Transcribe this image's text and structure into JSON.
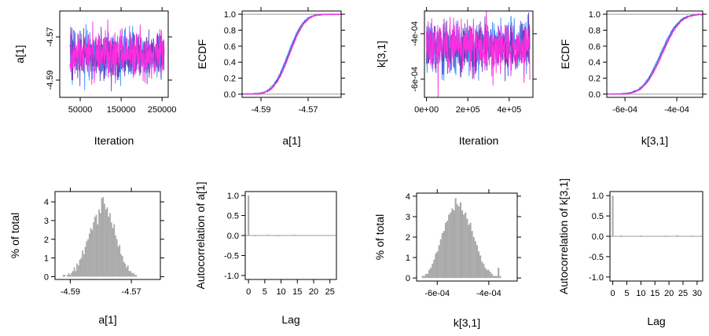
{
  "colors": {
    "chain1": "#3b8fff",
    "chain2": "#6a3fb8",
    "chain3": "#ff2de0",
    "hist": "#a8a8a8",
    "grid_line": "#9a9a9a",
    "axis": "#000000"
  },
  "chart_data": [
    {
      "id": "trace-a1",
      "type": "line",
      "subtype": "mcmc-trace",
      "xlabel": "Iteration",
      "ylabel": "a[1]",
      "x_ticks": [
        {
          "value": 50000,
          "label": "50000"
        },
        {
          "value": 150000,
          "label": "150000"
        },
        {
          "value": 250000,
          "label": "250000"
        }
      ],
      "y_ticks": [
        {
          "value": -4.57,
          "label": "-4.57"
        },
        {
          "value": -4.59,
          "label": "-4.59"
        }
      ],
      "xlim": [
        0,
        265000
      ],
      "ylim": [
        -4.598,
        -4.558
      ],
      "x_start": 25000,
      "x_end": 255000,
      "center": -4.5785,
      "spread": 0.0055,
      "series": [
        {
          "color_key": "chain1"
        },
        {
          "color_key": "chain2"
        },
        {
          "color_key": "chain3"
        }
      ]
    },
    {
      "id": "ecdf-a1",
      "type": "line",
      "subtype": "ecdf",
      "xlabel": "a[1]",
      "ylabel": "ECDF",
      "x_ticks": [
        {
          "value": -4.59,
          "label": "-4.59"
        },
        {
          "value": -4.57,
          "label": "-4.57"
        }
      ],
      "y_ticks": [
        {
          "value": 0.0,
          "label": "0.0"
        },
        {
          "value": 0.2,
          "label": "0.2"
        },
        {
          "value": 0.4,
          "label": "0.4"
        },
        {
          "value": 0.6,
          "label": "0.6"
        },
        {
          "value": 0.8,
          "label": "0.8"
        },
        {
          "value": 1.0,
          "label": "1.0"
        }
      ],
      "xlim": [
        -4.598,
        -4.556
      ],
      "ylim": [
        -0.04,
        1.04
      ],
      "center": -4.5782,
      "spread": 0.0052,
      "series": [
        {
          "color_key": "chain1",
          "shift": -0.0004
        },
        {
          "color_key": "chain2",
          "shift": 0.0
        },
        {
          "color_key": "chain3",
          "shift": 0.0004
        }
      ]
    },
    {
      "id": "trace-k31",
      "type": "line",
      "subtype": "mcmc-trace",
      "xlabel": "Iteration",
      "ylabel": "k[3,1]",
      "x_ticks": [
        {
          "value": 0,
          "label": "0e+00"
        },
        {
          "value": 200000,
          "label": "2e+05"
        },
        {
          "value": 400000,
          "label": "4e+05"
        }
      ],
      "y_ticks": [
        {
          "value": -0.0004,
          "label": "-4e-04"
        },
        {
          "value": -0.0006,
          "label": "-6e-04"
        }
      ],
      "xlim": [
        -10000,
        515000
      ],
      "ylim": [
        -0.00068,
        -0.0003
      ],
      "x_start": 0,
      "x_end": 500000,
      "center": -0.00046,
      "spread": 5.5e-05,
      "series": [
        {
          "color_key": "chain1"
        },
        {
          "color_key": "chain2"
        },
        {
          "color_key": "chain3"
        }
      ]
    },
    {
      "id": "ecdf-k31",
      "type": "line",
      "subtype": "ecdf",
      "xlabel": "k[3,1]",
      "ylabel": "ECDF",
      "x_ticks": [
        {
          "value": -0.0006,
          "label": "-6e-04"
        },
        {
          "value": -0.0004,
          "label": "-4e-04"
        }
      ],
      "y_ticks": [
        {
          "value": 0.0,
          "label": "0.0"
        },
        {
          "value": 0.2,
          "label": "0.2"
        },
        {
          "value": 0.4,
          "label": "0.4"
        },
        {
          "value": 0.6,
          "label": "0.6"
        },
        {
          "value": 0.8,
          "label": "0.8"
        },
        {
          "value": 1.0,
          "label": "1.0"
        }
      ],
      "xlim": [
        -0.00067,
        -0.0003
      ],
      "ylim": [
        -0.04,
        1.04
      ],
      "center": -0.00046,
      "spread": 5.5e-05,
      "series": [
        {
          "color_key": "chain1",
          "shift": -4e-06
        },
        {
          "color_key": "chain2",
          "shift": 0.0
        },
        {
          "color_key": "chain3",
          "shift": 4e-06
        }
      ]
    },
    {
      "id": "hist-a1",
      "type": "bar",
      "subtype": "histogram",
      "xlabel": "a[1]",
      "ylabel": "% of total",
      "x_ticks": [
        {
          "value": -4.59,
          "label": "-4.59"
        },
        {
          "value": -4.57,
          "label": "-4.57"
        }
      ],
      "y_ticks": [
        {
          "value": 0,
          "label": "0"
        },
        {
          "value": 1,
          "label": "1"
        },
        {
          "value": 2,
          "label": "2"
        },
        {
          "value": 3,
          "label": "3"
        },
        {
          "value": 4,
          "label": "4"
        }
      ],
      "xlim": [
        -4.595,
        -4.5605
      ],
      "ylim": [
        -0.15,
        4.55
      ],
      "bin_start": -4.5925,
      "bin_width": 0.00045,
      "values": [
        0.1,
        0.1,
        0,
        0.1,
        0.2,
        0.1,
        0.2,
        0.3,
        0.5,
        0.3,
        0.7,
        0.6,
        0.9,
        1.0,
        1.4,
        1.2,
        1.6,
        1.9,
        2.0,
        2.3,
        2.6,
        2.5,
        2.9,
        3.2,
        3.3,
        2.8,
        3.6,
        3.4,
        4.2,
        4.25,
        3.9,
        3.6,
        3.7,
        3.2,
        3.4,
        2.9,
        2.6,
        2.8,
        2.2,
        2.0,
        1.6,
        1.7,
        1.2,
        1.1,
        0.8,
        0.7,
        0.5,
        0.6,
        0.3,
        0.3,
        0.2,
        0.2,
        0.1,
        0.1
      ]
    },
    {
      "id": "acf-a1",
      "type": "bar",
      "subtype": "autocorrelation",
      "xlabel": "Lag",
      "ylabel": "Autocorrelation of a[1]",
      "x_ticks": [
        {
          "value": 0,
          "label": "0"
        },
        {
          "value": 5,
          "label": "5"
        },
        {
          "value": 10,
          "label": "10"
        },
        {
          "value": 15,
          "label": "15"
        },
        {
          "value": 20,
          "label": "20"
        },
        {
          "value": 25,
          "label": "25"
        }
      ],
      "y_ticks": [
        {
          "value": 1.0,
          "label": "1.0"
        },
        {
          "value": 0.5,
          "label": "0.5"
        },
        {
          "value": 0.0,
          "label": "0.0"
        },
        {
          "value": -0.5,
          "label": "-0.5"
        },
        {
          "value": -1.0,
          "label": "-1.0"
        }
      ],
      "xlim": [
        -1,
        27
      ],
      "ylim": [
        -1.1,
        1.1
      ],
      "x": [
        0,
        1,
        2,
        3,
        4,
        5,
        6,
        7,
        8,
        9,
        10,
        11,
        12,
        13,
        14,
        15,
        16,
        17,
        18,
        19,
        20,
        21,
        22,
        23,
        24,
        25,
        26
      ],
      "values": [
        1.0,
        0.01,
        -0.02,
        0.01,
        0.0,
        -0.01,
        0.02,
        -0.01,
        0.0,
        -0.02,
        0.01,
        0.0,
        0.01,
        -0.01,
        0.02,
        0.0,
        -0.01,
        0.01,
        0.0,
        -0.01,
        0.0,
        0.01,
        -0.01,
        0.0,
        0.01,
        0.0,
        -0.01
      ]
    },
    {
      "id": "hist-k31",
      "type": "bar",
      "subtype": "histogram",
      "xlabel": "k[3,1]",
      "ylabel": "% of total",
      "x_ticks": [
        {
          "value": -0.0006,
          "label": "-6e-04"
        },
        {
          "value": -0.0004,
          "label": "-4e-04"
        }
      ],
      "y_ticks": [
        {
          "value": 0,
          "label": "0"
        },
        {
          "value": 1,
          "label": "1"
        },
        {
          "value": 2,
          "label": "2"
        },
        {
          "value": 3,
          "label": "3"
        },
        {
          "value": 4,
          "label": "4"
        }
      ],
      "xlim": [
        -0.00068,
        -0.00029
      ],
      "ylim": [
        -0.15,
        4.15
      ],
      "bin_start": -0.00066,
      "bin_width": 6.4e-06,
      "values": [
        0.1,
        0.1,
        0.2,
        0.2,
        0.4,
        0.5,
        0.7,
        0.9,
        1.2,
        1.3,
        1.6,
        1.9,
        2.2,
        2.3,
        2.7,
        2.8,
        3.1,
        3.2,
        3.4,
        3.3,
        3.9,
        3.6,
        3.5,
        3.7,
        3.3,
        3.1,
        3.2,
        2.9,
        2.6,
        2.7,
        2.3,
        2.0,
        1.8,
        1.6,
        1.3,
        1.1,
        0.8,
        0.7,
        0.5,
        0.4,
        0.4,
        0.3,
        0.2,
        0.1,
        0.1,
        0.1,
        0.5,
        0.1
      ]
    },
    {
      "id": "acf-k31",
      "type": "bar",
      "subtype": "autocorrelation",
      "xlabel": "Lag",
      "ylabel": "Autocorrelation of k[3,1]",
      "x_ticks": [
        {
          "value": 0,
          "label": "0"
        },
        {
          "value": 5,
          "label": "5"
        },
        {
          "value": 10,
          "label": "10"
        },
        {
          "value": 15,
          "label": "15"
        },
        {
          "value": 20,
          "label": "20"
        },
        {
          "value": 25,
          "label": "25"
        },
        {
          "value": 30,
          "label": "30"
        }
      ],
      "y_ticks": [
        {
          "value": 1.0,
          "label": "1.0"
        },
        {
          "value": 0.5,
          "label": "0.5"
        },
        {
          "value": 0.0,
          "label": "0.0"
        },
        {
          "value": -0.5,
          "label": "-0.5"
        },
        {
          "value": -1.0,
          "label": "-1.0"
        }
      ],
      "xlim": [
        -1,
        32
      ],
      "ylim": [
        -1.1,
        1.1
      ],
      "x": [
        0,
        1,
        2,
        3,
        4,
        5,
        6,
        7,
        8,
        9,
        10,
        11,
        12,
        13,
        14,
        15,
        16,
        17,
        18,
        19,
        20,
        21,
        22,
        23,
        24,
        25,
        26,
        27,
        28,
        29,
        30,
        31
      ],
      "values": [
        1.0,
        0.01,
        -0.01,
        0.02,
        0.0,
        -0.01,
        0.01,
        0.0,
        -0.01,
        0.01,
        0.02,
        0.0,
        -0.01,
        0.01,
        0.0,
        0.01,
        -0.01,
        0.0,
        0.01,
        0.02,
        0.0,
        -0.01,
        0.01,
        0.03,
        0.0,
        0.01,
        -0.01,
        0.0,
        0.02,
        0.01,
        0.0,
        0.01
      ]
    }
  ]
}
